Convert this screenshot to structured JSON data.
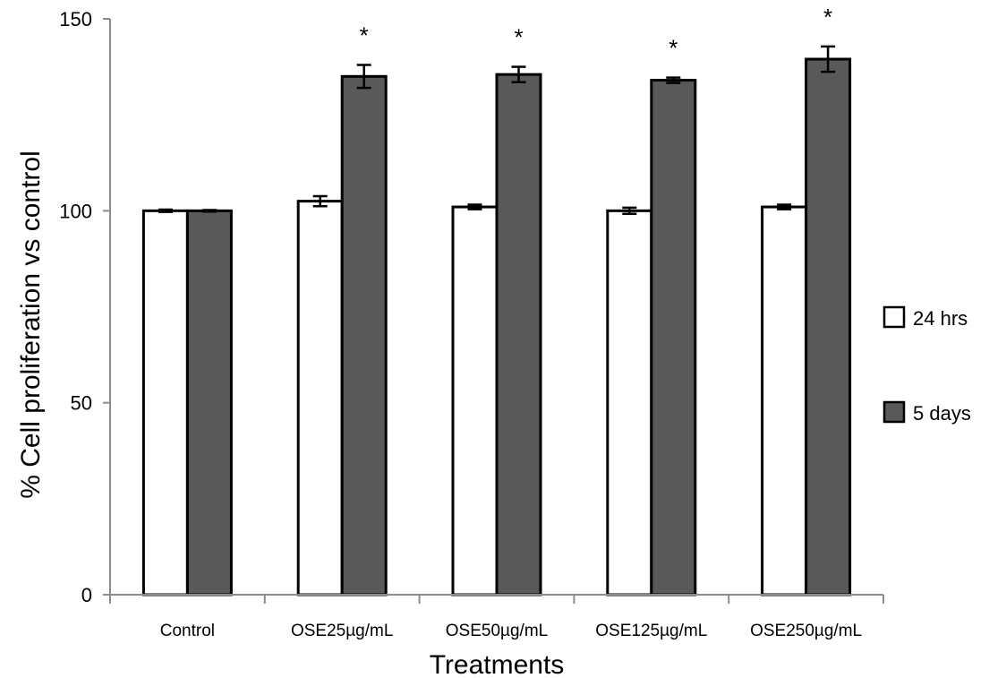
{
  "chart_data": {
    "type": "bar",
    "title": "",
    "xlabel": "Treatments",
    "ylabel": "% Cell proliferation vs control",
    "ylim": [
      0,
      150
    ],
    "yticks": [
      0,
      50,
      100,
      150
    ],
    "grid": false,
    "legend_position": "right",
    "categories": [
      "Control",
      "OSE25µg/mL",
      "OSE50µg/mL",
      "OSE125µg/mL",
      "OSE250µg/mL"
    ],
    "series": [
      {
        "name": "24 hrs",
        "color": "#ffffff",
        "values": [
          100,
          102.5,
          101,
          100,
          101
        ],
        "errors": [
          0.3,
          1.3,
          0.6,
          0.8,
          0.6
        ],
        "annotations": [
          "",
          "",
          "",
          "",
          ""
        ]
      },
      {
        "name": "5 days",
        "color": "#595959",
        "values": [
          100,
          135,
          135.5,
          134,
          139.5
        ],
        "errors": [
          0.2,
          3.0,
          2.0,
          0.7,
          3.3
        ],
        "annotations": [
          "",
          "*",
          "*",
          "*",
          "*"
        ]
      }
    ]
  }
}
